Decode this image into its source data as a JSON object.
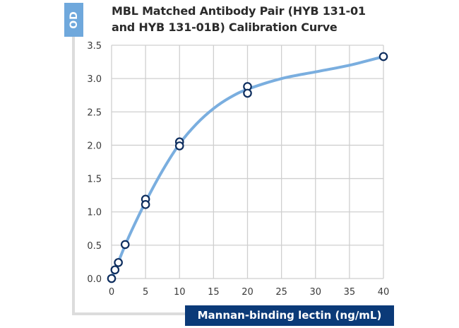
{
  "chart_data": {
    "type": "scatter",
    "title": "MBL Matched Antibody Pair (HYB 131-01 and HYB 131-01B) Calibration Curve",
    "title_lines": [
      "MBL Matched Antibody Pair (HYB 131-01",
      "and HYB 131-01B) Calibration Curve"
    ],
    "xlabel": "Mannan-binding lectin (ng/mL)",
    "ylabel": "OD",
    "xlim": [
      0,
      40
    ],
    "ylim": [
      0,
      3.5
    ],
    "x_ticks": [
      0,
      5,
      10,
      15,
      20,
      25,
      30,
      35,
      40
    ],
    "y_ticks": [
      0.0,
      0.5,
      1.0,
      1.5,
      2.0,
      2.5,
      3.0,
      3.5
    ],
    "y_tick_labels": [
      "0.0",
      "0.5",
      "1.0",
      "1.5",
      "2.0",
      "2.5",
      "3.0",
      "3.5"
    ],
    "grid": true,
    "legend": null,
    "series": [
      {
        "name": "Measured points",
        "kind": "scatter",
        "x": [
          0,
          0.5,
          1,
          2,
          5,
          5,
          10,
          10,
          20,
          20,
          40
        ],
        "y": [
          0.0,
          0.13,
          0.24,
          0.51,
          1.19,
          1.11,
          2.05,
          1.99,
          2.88,
          2.78,
          3.33
        ]
      },
      {
        "name": "Fitted curve",
        "kind": "line",
        "x": [
          0,
          1,
          2,
          3,
          5,
          7.5,
          10,
          12.5,
          15,
          17.5,
          20,
          25,
          30,
          35,
          40
        ],
        "y": [
          0.0,
          0.25,
          0.5,
          0.73,
          1.15,
          1.62,
          2.02,
          2.32,
          2.55,
          2.72,
          2.84,
          3.0,
          3.1,
          3.2,
          3.33
        ]
      }
    ]
  },
  "colors": {
    "curve": "#7aaedf",
    "marker_stroke": "#0d2d5e",
    "grid": "#cfcfcf",
    "od_box": "#6fa8dc",
    "xlabel_box": "#0b3a78",
    "frame": "#dcdcdc"
  },
  "labels": {
    "od": "OD",
    "xlabel": "Mannan-binding lectin (ng/mL)",
    "title_line1": "MBL Matched Antibody Pair (HYB 131-01",
    "title_line2": "and HYB 131-01B) Calibration Curve"
  }
}
